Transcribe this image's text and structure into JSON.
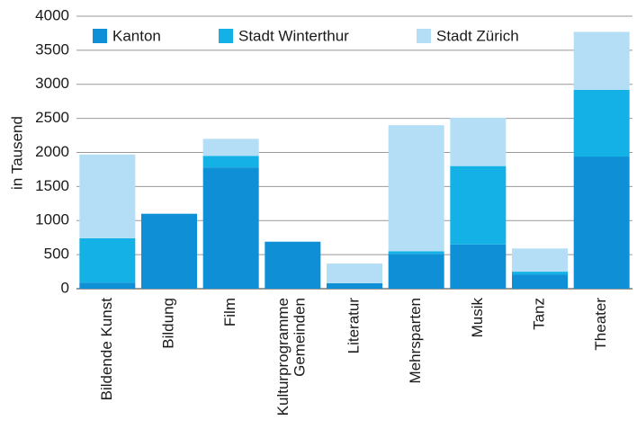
{
  "chart_data": {
    "type": "stacked_bar",
    "y_label": "in Tausend",
    "categories": [
      "Bildende Kunst",
      "Bildung",
      "Film",
      "Kulturprogramme\nGemeinden",
      "Literatur",
      "Mehrsparten",
      "Musik",
      "Tanz",
      "Theater"
    ],
    "series": [
      {
        "name": "Kanton",
        "color": "#0e8fd6",
        "values": [
          90,
          1100,
          1780,
          690,
          80,
          510,
          650,
          210,
          1940
        ]
      },
      {
        "name": "Stadt Winterthur",
        "color": "#14b1e7",
        "values": [
          650,
          0,
          170,
          0,
          0,
          40,
          1150,
          40,
          980
        ]
      },
      {
        "name": "Stadt Zürich",
        "color": "#b3def5",
        "values": [
          1230,
          0,
          250,
          0,
          290,
          1850,
          710,
          340,
          850
        ]
      }
    ],
    "ylim": [
      0,
      4000
    ],
    "yticks": [
      0,
      500,
      1000,
      1500,
      2000,
      2500,
      3000,
      3500,
      4000
    ],
    "grid": true,
    "legend": "top"
  }
}
